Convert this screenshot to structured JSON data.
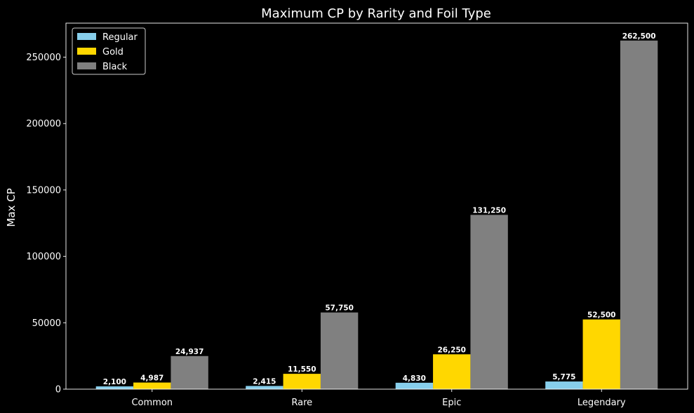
{
  "chart_data": {
    "type": "bar",
    "title": "Maximum CP by Rarity and Foil Type",
    "xlabel": "",
    "ylabel": "Max CP",
    "categories": [
      "Common",
      "Rare",
      "Epic",
      "Legendary"
    ],
    "series": [
      {
        "name": "Regular",
        "color": "#87ceeb",
        "values": [
          2100,
          2415,
          4830,
          5775
        ],
        "labels": [
          "2,100",
          "2,415",
          "4,830",
          "5,775"
        ]
      },
      {
        "name": "Gold",
        "color": "#ffd700",
        "values": [
          4987,
          11550,
          26250,
          52500
        ],
        "labels": [
          "4,987",
          "11,550",
          "26,250",
          "52,500"
        ]
      },
      {
        "name": "Black",
        "color": "#808080",
        "values": [
          24937,
          57750,
          131250,
          262500
        ],
        "labels": [
          "24,937",
          "57,750",
          "131,250",
          "262,500"
        ]
      }
    ],
    "ylim": [
      0,
      275625
    ],
    "yticks": [
      0,
      50000,
      100000,
      150000,
      200000,
      250000
    ],
    "ytick_labels": [
      "0",
      "50000",
      "100000",
      "150000",
      "200000",
      "250000"
    ],
    "grid": false,
    "legend_position": "top-left",
    "background": "#000000",
    "text_color": "#ffffff"
  }
}
